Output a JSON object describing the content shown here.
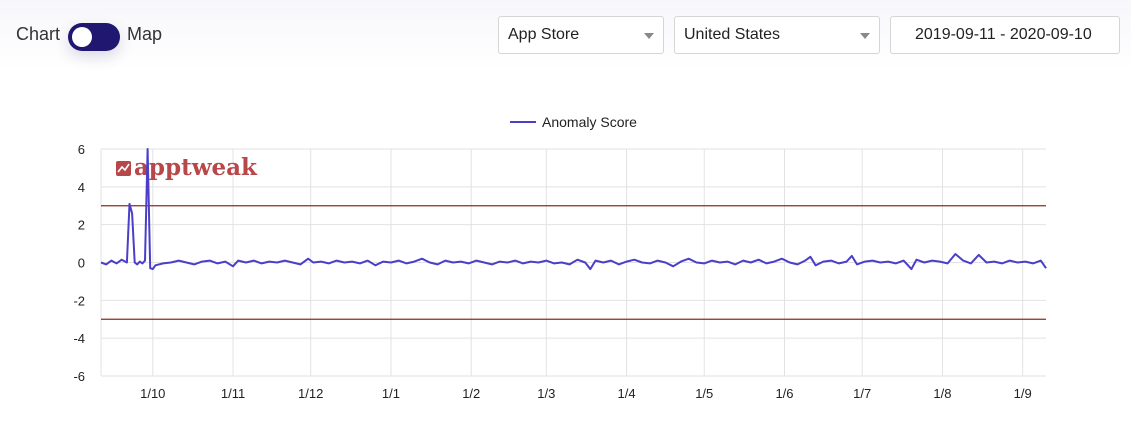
{
  "controls": {
    "toggle_left_label": "Chart",
    "toggle_right_label": "Map",
    "store_select": "App Store",
    "country_select": "United States",
    "date_range": "2019-09-11 - 2020-09-10"
  },
  "watermark": "apptweak",
  "chart_data": {
    "type": "line",
    "title": "",
    "xlabel": "",
    "ylabel": "",
    "ylim": [
      -6,
      6
    ],
    "yticks": [
      -6,
      -4,
      -2,
      0,
      2,
      4,
      6
    ],
    "xticks": [
      "1/10",
      "1/11",
      "1/12",
      "1/1",
      "1/2",
      "1/3",
      "1/4",
      "1/5",
      "1/6",
      "1/7",
      "1/8",
      "1/9"
    ],
    "x_start": "2019-09-11",
    "x_end": "2020-09-10",
    "grid": true,
    "legend": "top-center",
    "thresholds": [
      3,
      -3
    ],
    "threshold_color": "#8b2c22",
    "series": [
      {
        "name": "Anomaly Score",
        "color": "#4b3fc9",
        "points": [
          [
            "2019-09-11",
            0.0
          ],
          [
            "2019-09-13",
            -0.1
          ],
          [
            "2019-09-15",
            0.1
          ],
          [
            "2019-09-17",
            -0.05
          ],
          [
            "2019-09-19",
            0.15
          ],
          [
            "2019-09-21",
            0.0
          ],
          [
            "2019-09-22",
            3.1
          ],
          [
            "2019-09-23",
            2.6
          ],
          [
            "2019-09-24",
            0.0
          ],
          [
            "2019-09-25",
            -0.1
          ],
          [
            "2019-09-26",
            0.05
          ],
          [
            "2019-09-27",
            -0.05
          ],
          [
            "2019-09-28",
            0.1
          ],
          [
            "2019-09-29",
            6.0
          ],
          [
            "2019-09-30",
            -0.3
          ],
          [
            "2019-10-01",
            -0.35
          ],
          [
            "2019-10-02",
            -0.15
          ],
          [
            "2019-10-05",
            -0.05
          ],
          [
            "2019-10-08",
            0.0
          ],
          [
            "2019-10-11",
            0.1
          ],
          [
            "2019-10-14",
            0.0
          ],
          [
            "2019-10-17",
            -0.1
          ],
          [
            "2019-10-20",
            0.05
          ],
          [
            "2019-10-23",
            0.1
          ],
          [
            "2019-10-26",
            -0.05
          ],
          [
            "2019-10-29",
            0.05
          ],
          [
            "2019-11-01",
            -0.2
          ],
          [
            "2019-11-03",
            0.1
          ],
          [
            "2019-11-06",
            0.0
          ],
          [
            "2019-11-09",
            0.1
          ],
          [
            "2019-11-12",
            -0.05
          ],
          [
            "2019-11-15",
            0.05
          ],
          [
            "2019-11-18",
            0.0
          ],
          [
            "2019-11-21",
            0.1
          ],
          [
            "2019-11-24",
            0.0
          ],
          [
            "2019-11-27",
            -0.1
          ],
          [
            "2019-11-30",
            0.2
          ],
          [
            "2019-12-02",
            0.0
          ],
          [
            "2019-12-05",
            0.05
          ],
          [
            "2019-12-08",
            -0.05
          ],
          [
            "2019-12-11",
            0.1
          ],
          [
            "2019-12-14",
            0.0
          ],
          [
            "2019-12-17",
            0.05
          ],
          [
            "2019-12-20",
            -0.05
          ],
          [
            "2019-12-23",
            0.1
          ],
          [
            "2019-12-26",
            -0.15
          ],
          [
            "2019-12-29",
            0.05
          ],
          [
            "2020-01-01",
            0.0
          ],
          [
            "2020-01-04",
            0.1
          ],
          [
            "2020-01-07",
            -0.05
          ],
          [
            "2020-01-10",
            0.05
          ],
          [
            "2020-01-13",
            0.2
          ],
          [
            "2020-01-16",
            0.0
          ],
          [
            "2020-01-19",
            -0.1
          ],
          [
            "2020-01-22",
            0.1
          ],
          [
            "2020-01-25",
            0.0
          ],
          [
            "2020-01-28",
            0.05
          ],
          [
            "2020-01-31",
            -0.05
          ],
          [
            "2020-02-03",
            0.1
          ],
          [
            "2020-02-06",
            0.0
          ],
          [
            "2020-02-09",
            -0.1
          ],
          [
            "2020-02-12",
            0.05
          ],
          [
            "2020-02-15",
            0.0
          ],
          [
            "2020-02-18",
            0.1
          ],
          [
            "2020-02-21",
            -0.05
          ],
          [
            "2020-02-24",
            0.05
          ],
          [
            "2020-02-27",
            0.0
          ],
          [
            "2020-03-01",
            0.1
          ],
          [
            "2020-03-04",
            -0.05
          ],
          [
            "2020-03-07",
            0.0
          ],
          [
            "2020-03-10",
            -0.1
          ],
          [
            "2020-03-13",
            0.15
          ],
          [
            "2020-03-16",
            0.0
          ],
          [
            "2020-03-18",
            -0.35
          ],
          [
            "2020-03-20",
            0.1
          ],
          [
            "2020-03-23",
            0.0
          ],
          [
            "2020-03-26",
            0.1
          ],
          [
            "2020-03-29",
            -0.1
          ],
          [
            "2020-04-01",
            0.05
          ],
          [
            "2020-04-04",
            0.15
          ],
          [
            "2020-04-07",
            0.0
          ],
          [
            "2020-04-10",
            -0.05
          ],
          [
            "2020-04-13",
            0.1
          ],
          [
            "2020-04-16",
            0.0
          ],
          [
            "2020-04-19",
            -0.2
          ],
          [
            "2020-04-22",
            0.05
          ],
          [
            "2020-04-25",
            0.2
          ],
          [
            "2020-04-28",
            0.0
          ],
          [
            "2020-05-01",
            -0.05
          ],
          [
            "2020-05-04",
            0.1
          ],
          [
            "2020-05-07",
            0.0
          ],
          [
            "2020-05-10",
            0.05
          ],
          [
            "2020-05-13",
            -0.1
          ],
          [
            "2020-05-16",
            0.1
          ],
          [
            "2020-05-19",
            0.0
          ],
          [
            "2020-05-22",
            0.15
          ],
          [
            "2020-05-25",
            -0.05
          ],
          [
            "2020-05-28",
            0.05
          ],
          [
            "2020-05-31",
            0.2
          ],
          [
            "2020-06-03",
            0.0
          ],
          [
            "2020-06-06",
            -0.1
          ],
          [
            "2020-06-09",
            0.1
          ],
          [
            "2020-06-11",
            0.3
          ],
          [
            "2020-06-13",
            -0.15
          ],
          [
            "2020-06-16",
            0.05
          ],
          [
            "2020-06-19",
            0.1
          ],
          [
            "2020-06-22",
            -0.05
          ],
          [
            "2020-06-25",
            0.05
          ],
          [
            "2020-06-27",
            0.35
          ],
          [
            "2020-06-29",
            -0.1
          ],
          [
            "2020-07-02",
            0.05
          ],
          [
            "2020-07-05",
            0.1
          ],
          [
            "2020-07-08",
            0.0
          ],
          [
            "2020-07-11",
            0.05
          ],
          [
            "2020-07-14",
            -0.05
          ],
          [
            "2020-07-17",
            0.1
          ],
          [
            "2020-07-20",
            -0.35
          ],
          [
            "2020-07-22",
            0.15
          ],
          [
            "2020-07-25",
            0.0
          ],
          [
            "2020-07-28",
            0.1
          ],
          [
            "2020-07-31",
            0.05
          ],
          [
            "2020-08-03",
            -0.05
          ],
          [
            "2020-08-06",
            0.45
          ],
          [
            "2020-08-09",
            0.1
          ],
          [
            "2020-08-12",
            -0.05
          ],
          [
            "2020-08-15",
            0.4
          ],
          [
            "2020-08-18",
            0.0
          ],
          [
            "2020-08-21",
            0.05
          ],
          [
            "2020-08-24",
            -0.05
          ],
          [
            "2020-08-27",
            0.1
          ],
          [
            "2020-08-30",
            0.0
          ],
          [
            "2020-09-02",
            0.05
          ],
          [
            "2020-09-05",
            -0.05
          ],
          [
            "2020-09-08",
            0.1
          ],
          [
            "2020-09-10",
            -0.3
          ]
        ]
      }
    ]
  }
}
